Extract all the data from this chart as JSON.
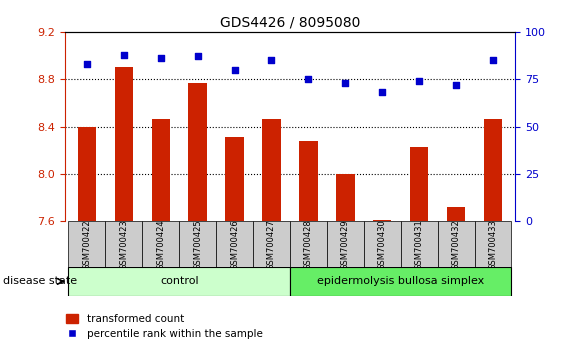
{
  "title": "GDS4426 / 8095080",
  "samples": [
    "GSM700422",
    "GSM700423",
    "GSM700424",
    "GSM700425",
    "GSM700426",
    "GSM700427",
    "GSM700428",
    "GSM700429",
    "GSM700430",
    "GSM700431",
    "GSM700432",
    "GSM700433"
  ],
  "bar_values": [
    8.4,
    8.9,
    8.46,
    8.77,
    8.31,
    8.46,
    8.28,
    8.0,
    7.61,
    8.23,
    7.72,
    8.46
  ],
  "dot_values": [
    83,
    88,
    86,
    87,
    80,
    85,
    75,
    73,
    68,
    74,
    72,
    85
  ],
  "ylim_left": [
    7.6,
    9.2
  ],
  "ylim_right": [
    0,
    100
  ],
  "yticks_left": [
    7.6,
    8.0,
    8.4,
    8.8,
    9.2
  ],
  "yticks_right": [
    0,
    25,
    50,
    75,
    100
  ],
  "bar_color": "#cc2200",
  "dot_color": "#0000cc",
  "bar_bottom": 7.6,
  "control_label": "control",
  "disease_label": "epidermolysis bullosa simplex",
  "group_label": "disease state",
  "legend_bar": "transformed count",
  "legend_dot": "percentile rank within the sample",
  "control_color": "#ccffcc",
  "disease_color": "#66ee66",
  "tick_area_color": "#cccccc",
  "right_tick_color": "#0000cc",
  "left_tick_color": "#cc2200",
  "ctrl_n": 6,
  "dis_n": 6
}
